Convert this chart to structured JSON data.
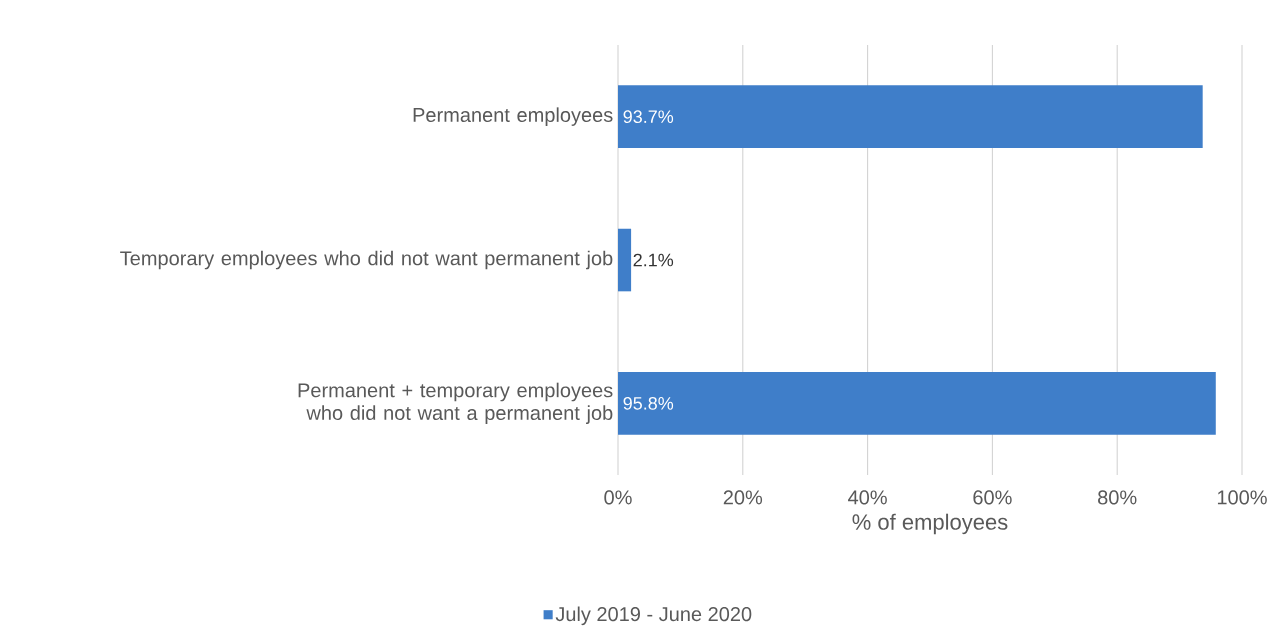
{
  "chart_data": {
    "type": "bar",
    "orientation": "horizontal",
    "categories": [
      "Permanent employees",
      "Temporary employees who did not want permanent job",
      "Permanent + temporary employees who did not want a permanent job"
    ],
    "series": [
      {
        "name": "July 2019 - June 2020",
        "color": "#3f7ec9",
        "values": [
          93.7,
          2.1,
          95.8
        ],
        "value_labels": [
          "93.7%",
          "2.1%",
          "95.8%"
        ]
      }
    ],
    "xlabel": "% of employees",
    "xlim": [
      0,
      100
    ],
    "xticks": [
      {
        "value": 0,
        "label": "0%"
      },
      {
        "value": 20,
        "label": "20%"
      },
      {
        "value": 40,
        "label": "40%"
      },
      {
        "value": 60,
        "label": "60%"
      },
      {
        "value": 80,
        "label": "80%"
      },
      {
        "value": 100,
        "label": "100%"
      }
    ],
    "grid": "x",
    "legend": "bottom"
  }
}
